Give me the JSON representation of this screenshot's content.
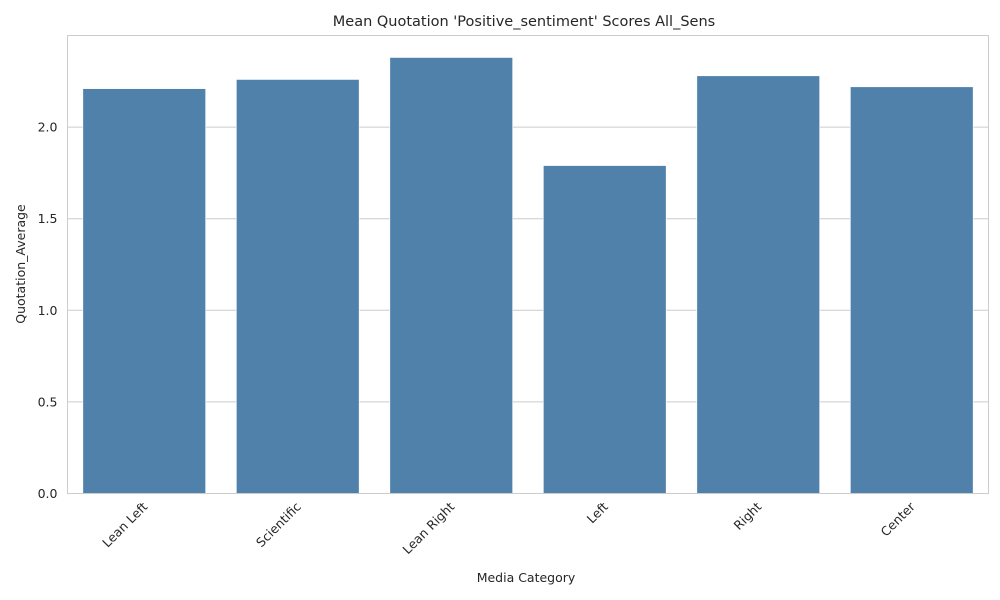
{
  "chart_data": {
    "type": "bar",
    "title": "Mean Quotation 'Positive_sentiment' Scores All_Sens",
    "xlabel": "Media Category",
    "ylabel": "Quotation_Average",
    "categories": [
      "Lean Left",
      "Scientific",
      "Lean Right",
      "Left",
      "Right",
      "Center"
    ],
    "values": [
      2.21,
      2.26,
      2.38,
      1.79,
      2.28,
      2.22
    ],
    "ylim": [
      0,
      2.5
    ],
    "yticks": [
      0.0,
      0.5,
      1.0,
      1.5,
      2.0
    ],
    "ytick_labels": [
      "0.0",
      "0.5",
      "1.0",
      "1.5",
      "2.0"
    ],
    "bar_color": "#4f81aa",
    "grid": true,
    "grid_axis": "y"
  }
}
